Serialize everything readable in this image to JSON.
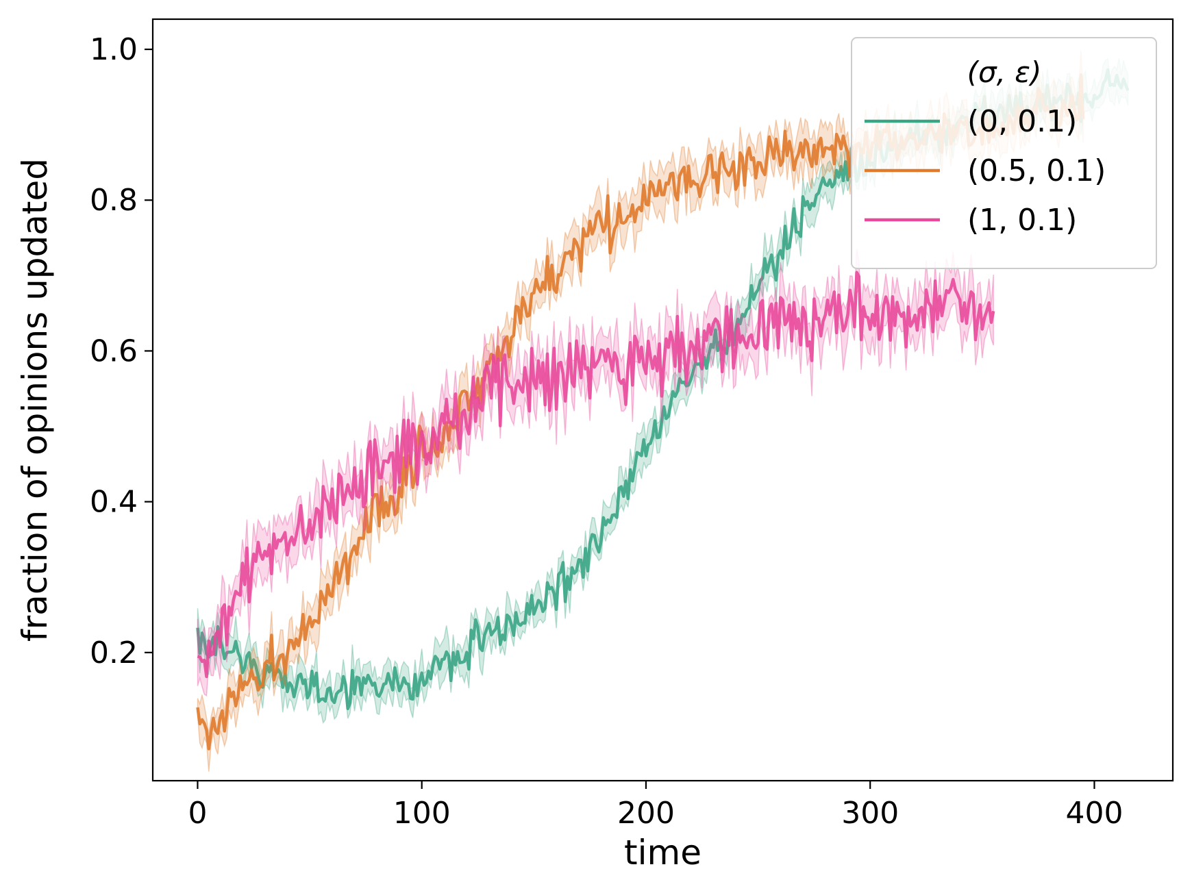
{
  "chart_data": {
    "type": "line",
    "title": "",
    "xlabel": "time",
    "ylabel": "fraction of opinions updated",
    "xlim": [
      -20,
      435
    ],
    "ylim": [
      0.03,
      1.04
    ],
    "x_ticks": [
      0,
      100,
      200,
      300,
      400
    ],
    "x_tick_labels": [
      "0",
      "100",
      "200",
      "300",
      "400"
    ],
    "y_ticks": [
      0.2,
      0.4,
      0.6,
      0.8,
      1.0
    ],
    "y_tick_labels": [
      "0.2",
      "0.4",
      "0.6",
      "0.8",
      "1.0"
    ],
    "grid": false,
    "legend": {
      "title": "(σ, ε)",
      "placement": "top-right"
    },
    "series": [
      {
        "name": "(0, 0.1)",
        "color": "#3aa585",
        "x_start": 0,
        "x_end": 415,
        "anchors": [
          [
            0,
            0.22
          ],
          [
            5,
            0.2
          ],
          [
            10,
            0.21
          ],
          [
            20,
            0.19
          ],
          [
            30,
            0.18
          ],
          [
            40,
            0.15
          ],
          [
            60,
            0.15
          ],
          [
            80,
            0.16
          ],
          [
            100,
            0.16
          ],
          [
            110,
            0.19
          ],
          [
            130,
            0.22
          ],
          [
            150,
            0.26
          ],
          [
            160,
            0.28
          ],
          [
            170,
            0.31
          ],
          [
            180,
            0.35
          ],
          [
            190,
            0.41
          ],
          [
            200,
            0.47
          ],
          [
            210,
            0.53
          ],
          [
            220,
            0.57
          ],
          [
            230,
            0.6
          ],
          [
            240,
            0.63
          ],
          [
            250,
            0.69
          ],
          [
            260,
            0.73
          ],
          [
            270,
            0.78
          ],
          [
            280,
            0.82
          ],
          [
            290,
            0.84
          ],
          [
            300,
            0.86
          ],
          [
            320,
            0.88
          ],
          [
            340,
            0.9
          ],
          [
            360,
            0.92
          ],
          [
            380,
            0.93
          ],
          [
            400,
            0.94
          ],
          [
            415,
            0.96
          ]
        ],
        "noise": 0.025,
        "band": 0.02
      },
      {
        "name": "(0.5, 0.1)",
        "color": "#e07a2c",
        "x_start": 0,
        "x_end": 395,
        "anchors": [
          [
            0,
            0.12
          ],
          [
            5,
            0.09
          ],
          [
            10,
            0.12
          ],
          [
            20,
            0.15
          ],
          [
            30,
            0.17
          ],
          [
            40,
            0.2
          ],
          [
            50,
            0.24
          ],
          [
            60,
            0.29
          ],
          [
            70,
            0.34
          ],
          [
            80,
            0.39
          ],
          [
            90,
            0.42
          ],
          [
            100,
            0.46
          ],
          [
            110,
            0.49
          ],
          [
            120,
            0.53
          ],
          [
            130,
            0.58
          ],
          [
            140,
            0.63
          ],
          [
            150,
            0.67
          ],
          [
            160,
            0.7
          ],
          [
            170,
            0.73
          ],
          [
            180,
            0.76
          ],
          [
            190,
            0.78
          ],
          [
            200,
            0.8
          ],
          [
            210,
            0.82
          ],
          [
            220,
            0.83
          ],
          [
            240,
            0.84
          ],
          [
            260,
            0.86
          ],
          [
            280,
            0.87
          ],
          [
            300,
            0.87
          ],
          [
            320,
            0.88
          ],
          [
            340,
            0.89
          ],
          [
            360,
            0.9
          ],
          [
            380,
            0.92
          ],
          [
            395,
            0.93
          ]
        ],
        "noise": 0.03,
        "band": 0.025
      },
      {
        "name": "(1, 0.1)",
        "color": "#e8499a",
        "x_start": 0,
        "x_end": 355,
        "anchors": [
          [
            0,
            0.2
          ],
          [
            5,
            0.21
          ],
          [
            10,
            0.24
          ],
          [
            15,
            0.26
          ],
          [
            20,
            0.3
          ],
          [
            30,
            0.33
          ],
          [
            40,
            0.35
          ],
          [
            50,
            0.37
          ],
          [
            60,
            0.4
          ],
          [
            70,
            0.42
          ],
          [
            80,
            0.44
          ],
          [
            90,
            0.46
          ],
          [
            100,
            0.48
          ],
          [
            110,
            0.5
          ],
          [
            120,
            0.52
          ],
          [
            130,
            0.55
          ],
          [
            140,
            0.55
          ],
          [
            150,
            0.56
          ],
          [
            160,
            0.57
          ],
          [
            170,
            0.57
          ],
          [
            180,
            0.58
          ],
          [
            190,
            0.58
          ],
          [
            200,
            0.59
          ],
          [
            210,
            0.6
          ],
          [
            220,
            0.61
          ],
          [
            240,
            0.62
          ],
          [
            260,
            0.63
          ],
          [
            280,
            0.64
          ],
          [
            300,
            0.65
          ],
          [
            320,
            0.65
          ],
          [
            340,
            0.66
          ],
          [
            355,
            0.66
          ]
        ],
        "noise": 0.045,
        "band": 0.03
      }
    ]
  }
}
